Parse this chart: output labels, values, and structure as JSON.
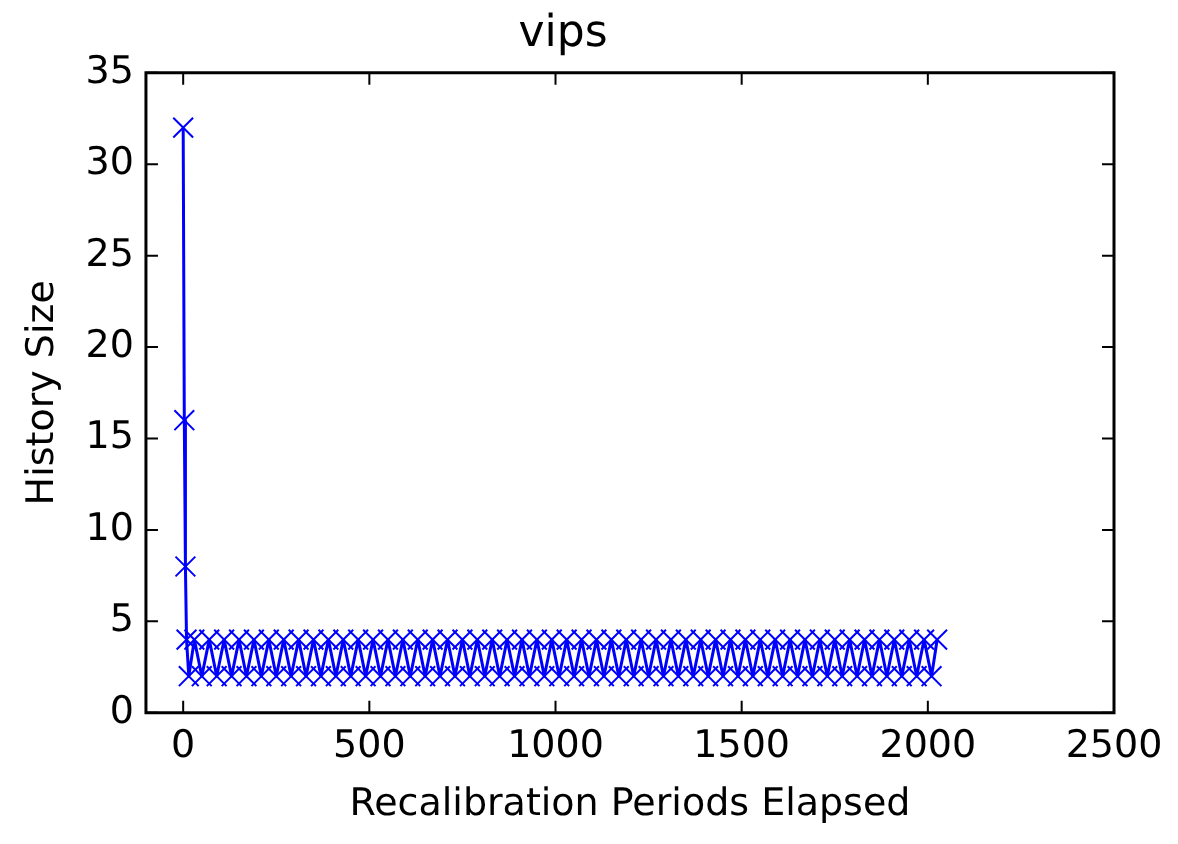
{
  "chart_data": {
    "type": "line",
    "title": "vips",
    "xlabel": "Recalibration Periods Elapsed",
    "ylabel": "History Size",
    "x": [
      0,
      3,
      6,
      9,
      15,
      30,
      50,
      70,
      90,
      110,
      130,
      150,
      170,
      190,
      210,
      230,
      250,
      270,
      290,
      310,
      330,
      350,
      370,
      390,
      410,
      430,
      450,
      470,
      490,
      510,
      530,
      550,
      570,
      590,
      610,
      630,
      650,
      670,
      690,
      710,
      730,
      750,
      770,
      790,
      810,
      830,
      850,
      870,
      890,
      910,
      930,
      950,
      970,
      990,
      1010,
      1030,
      1050,
      1070,
      1090,
      1110,
      1130,
      1150,
      1170,
      1190,
      1210,
      1230,
      1250,
      1270,
      1290,
      1310,
      1330,
      1350,
      1370,
      1390,
      1410,
      1430,
      1450,
      1470,
      1490,
      1510,
      1530,
      1550,
      1570,
      1590,
      1610,
      1630,
      1650,
      1670,
      1690,
      1710,
      1730,
      1750,
      1770,
      1790,
      1810,
      1830,
      1850,
      1870,
      1890,
      1910,
      1930,
      1950,
      1970,
      1990,
      2010,
      2025
    ],
    "series": [
      {
        "color": "#0000ff",
        "values": [
          32,
          16,
          8,
          4,
          2,
          4,
          2,
          4,
          2,
          4,
          2,
          4,
          2,
          4,
          2,
          4,
          2,
          4,
          2,
          4,
          2,
          4,
          2,
          4,
          2,
          4,
          2,
          4,
          2,
          4,
          2,
          4,
          2,
          4,
          2,
          4,
          2,
          4,
          2,
          4,
          2,
          4,
          2,
          4,
          2,
          4,
          2,
          4,
          2,
          4,
          2,
          4,
          2,
          4,
          2,
          4,
          2,
          4,
          2,
          4,
          2,
          4,
          2,
          4,
          2,
          4,
          2,
          4,
          2,
          4,
          2,
          4,
          2,
          4,
          2,
          4,
          2,
          4,
          2,
          4,
          2,
          4,
          2,
          4,
          2,
          4,
          2,
          4,
          2,
          4,
          2,
          4,
          2,
          4,
          2,
          4,
          2,
          4,
          2,
          4,
          2,
          4,
          2,
          4,
          2,
          4
        ]
      }
    ],
    "xlim": [
      -100,
      2500
    ],
    "xticks": [
      0,
      500,
      1000,
      1500,
      2000,
      2500
    ],
    "ylim": [
      0,
      35
    ],
    "yticks": [
      0,
      5,
      10,
      15,
      20,
      25,
      30,
      35
    ],
    "grid": false,
    "legend": false,
    "marker": "cross",
    "line_style": "solid"
  }
}
